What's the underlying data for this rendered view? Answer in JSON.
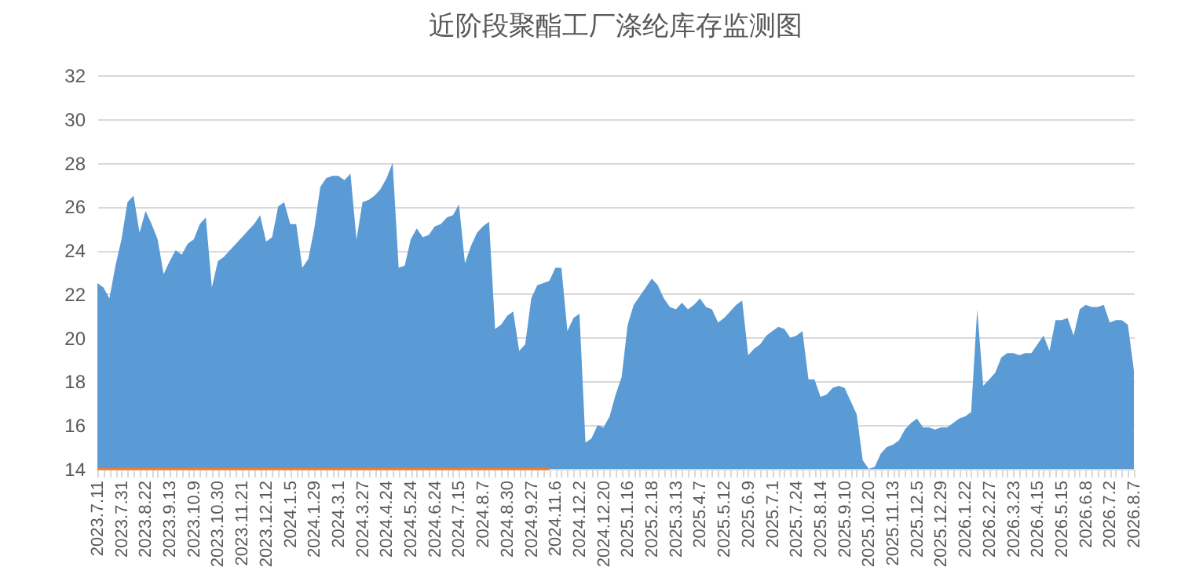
{
  "chart_data": {
    "type": "area",
    "title": "近阶段聚酯工厂涤纶库存监测图",
    "categories": [
      "2023.7.11",
      null,
      null,
      null,
      "2023.7.31",
      null,
      null,
      null,
      "2023.8.22",
      null,
      null,
      null,
      "2023.9.13",
      null,
      null,
      null,
      "2023.10.9",
      null,
      null,
      null,
      "2023.10.30",
      null,
      null,
      null,
      "2023.11.21",
      null,
      null,
      null,
      "2023.12.12",
      null,
      null,
      null,
      "2024.1.5",
      null,
      null,
      null,
      "2024.1.29",
      null,
      null,
      null,
      "2024.3.1",
      null,
      null,
      null,
      "2024.3.27",
      null,
      null,
      null,
      "2024.4.24",
      null,
      null,
      null,
      "2024.5.24",
      null,
      null,
      null,
      "2024.6.24",
      null,
      null,
      null,
      "2024.7.15",
      null,
      null,
      null,
      "2024.8.7",
      null,
      null,
      null,
      "2024.8.30",
      null,
      null,
      null,
      "2024.9.27",
      null,
      null,
      null,
      "2024.11.6",
      null,
      null,
      null,
      "2024.12.2",
      null,
      null,
      null,
      "2024.12.20",
      null,
      null,
      null,
      "2025.1.16",
      null,
      null,
      null,
      "2025.2.18",
      null,
      null,
      null,
      "2025.3.13",
      null,
      null,
      null,
      "2025.4.7",
      null,
      null,
      null,
      "2025.5.12",
      null,
      null,
      null,
      "2025.6.9",
      null,
      null,
      null,
      "2025.7.1",
      null,
      null,
      null,
      "2025.7.24",
      null,
      null,
      null,
      "2025.8.14",
      null,
      null,
      null,
      "2025.9.10",
      null,
      null,
      null,
      "2025.10.20",
      null,
      null,
      null,
      "2025.11.13",
      null,
      null,
      null,
      "2025.12.5",
      null,
      null,
      null,
      "2025.12.29",
      null,
      null,
      null,
      "2026.1.22",
      null,
      null,
      null,
      "2026.2.27",
      null,
      null,
      null,
      "2026.3.23",
      null,
      null,
      null,
      "2026.4.15",
      null,
      null,
      null,
      "2026.5.15",
      null,
      null,
      null,
      "2026.6.8",
      null,
      null,
      null,
      "2026.7.2",
      null,
      null,
      null,
      "2026.8.7"
    ],
    "series": [
      {
        "type": "area",
        "color": "#5b9bd5",
        "values": [
          22.5,
          22.3,
          21.8,
          23.3,
          24.5,
          26.2,
          26.5,
          24.8,
          25.8,
          25.2,
          24.5,
          22.9,
          23.5,
          24,
          23.8,
          24.3,
          24.5,
          25.2,
          25.5,
          22.3,
          23.5,
          23.7,
          24,
          24.3,
          24.6,
          24.9,
          25.2,
          25.6,
          24.4,
          24.6,
          26,
          26.2,
          25.2,
          25.2,
          23.2,
          23.6,
          25,
          26.9,
          27.3,
          27.4,
          27.4,
          27.2,
          27.5,
          24.5,
          26.2,
          26.3,
          26.5,
          26.8,
          27.3,
          28,
          23.2,
          23.3,
          24.5,
          25,
          24.6,
          24.7,
          25.1,
          25.2,
          25.5,
          25.6,
          26.1,
          23.4,
          24.2,
          24.8,
          25.1,
          25.3,
          20.4,
          20.6,
          21,
          21.2,
          19.4,
          19.7,
          21.8,
          22.4,
          22.5,
          22.6,
          23.2,
          23.2,
          20.3,
          20.9,
          21.1,
          15.2,
          15.4,
          16,
          15.9,
          16.4,
          17.4,
          18.2,
          20.6,
          21.5,
          21.9,
          22.3,
          22.7,
          22.4,
          21.8,
          21.4,
          21.3,
          21.6,
          21.3,
          21.5,
          21.8,
          21.4,
          21.3,
          20.7,
          20.9,
          21.2,
          21.5,
          21.7,
          19.2,
          19.5,
          19.7,
          20.1,
          20.3,
          20.5,
          20.4,
          20,
          20.1,
          20.3,
          18.1,
          18.1,
          17.3,
          17.4,
          17.7,
          17.8,
          17.7,
          17.1,
          16.5,
          14.4,
          14,
          14.1,
          14.7,
          15,
          15.1,
          15.3,
          15.8,
          16.1,
          16.3,
          15.9,
          15.9,
          15.8,
          15.9,
          15.9,
          16.1,
          16.3,
          16.4,
          16.6,
          21.3,
          17.8,
          18.1,
          18.4,
          19.1,
          19.3,
          19.3,
          19.2,
          19.3,
          19.3,
          19.7,
          20.1,
          19.4,
          20.8,
          20.8,
          20.9,
          20.1,
          21.3,
          21.5,
          21.4,
          21.4,
          21.5,
          20.7,
          20.8,
          20.8,
          20.6,
          18.5
        ]
      },
      {
        "type": "line",
        "color": "#ed7d31",
        "values": [
          14,
          14,
          14,
          14,
          14,
          14,
          14,
          14,
          14,
          14,
          14,
          14,
          14,
          14,
          14,
          14,
          14,
          14,
          14,
          14,
          14,
          14,
          14,
          14,
          14,
          14,
          14,
          14,
          14,
          14,
          14,
          14,
          14,
          14,
          14,
          14,
          14,
          14,
          14,
          14,
          14,
          14,
          14,
          14,
          14,
          14,
          14,
          14,
          14,
          14,
          14,
          14,
          14,
          14,
          14,
          14,
          14,
          14,
          14,
          14,
          14,
          14,
          14,
          14,
          14,
          14,
          14,
          14,
          14,
          14,
          14,
          14,
          14,
          14,
          14,
          14,
          null,
          null,
          null,
          null,
          null,
          null,
          null,
          null,
          null,
          null,
          null,
          null,
          null,
          null,
          null,
          null,
          null,
          null,
          null,
          null,
          null,
          null,
          null,
          null,
          null,
          null,
          null,
          null,
          null,
          null,
          null,
          null,
          null,
          null,
          null,
          null,
          null,
          null,
          null,
          null,
          null,
          null,
          null,
          null,
          null,
          null,
          null,
          null,
          null,
          null,
          null,
          null,
          null,
          null,
          null,
          null,
          null,
          null,
          null,
          null,
          null,
          null,
          null,
          null,
          null,
          null,
          null,
          null,
          null,
          null,
          null,
          null,
          null,
          null,
          null,
          null,
          null,
          null,
          null,
          null,
          null,
          null,
          null,
          null,
          null,
          null,
          null,
          null,
          null,
          null,
          null,
          null,
          null,
          null,
          null,
          null,
          null
        ]
      }
    ],
    "ylim": [
      14,
      32
    ],
    "yticks": [
      14,
      16,
      18,
      20,
      22,
      24,
      26,
      28,
      30,
      32
    ],
    "grid": "y"
  }
}
